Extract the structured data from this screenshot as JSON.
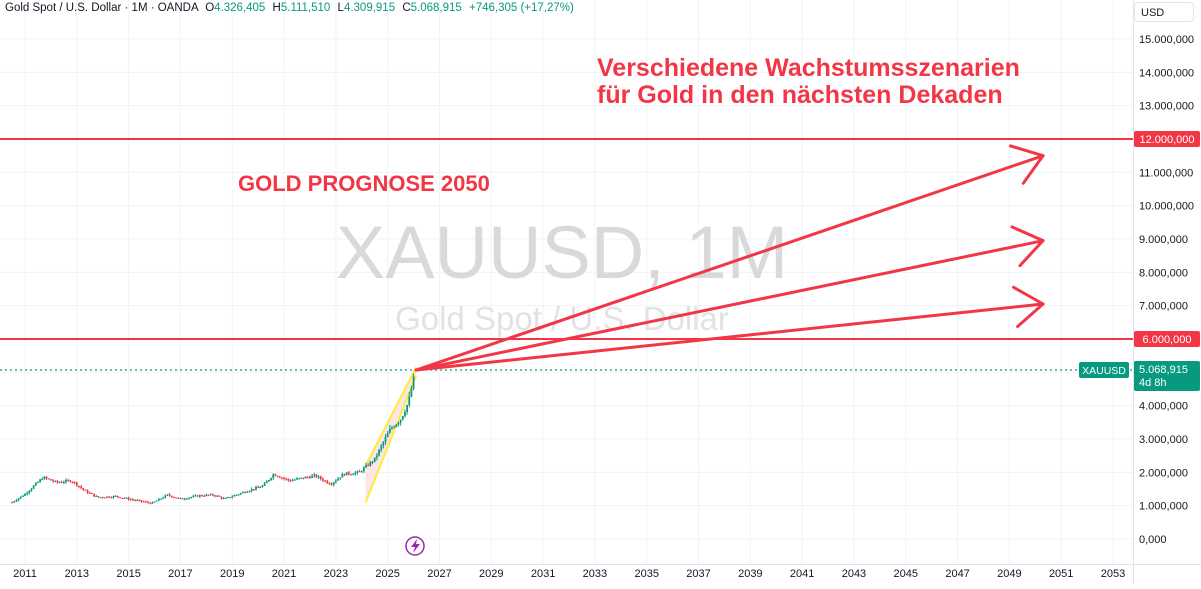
{
  "legend": {
    "symbol": "Gold Spot / U.S. Dollar · 1M · OANDA",
    "o_label": "O",
    "o_value": "4.326,405",
    "h_label": "H",
    "h_value": "5.111,510",
    "l_label": "L",
    "l_value": "4.309,915",
    "c_label": "C",
    "c_value": "5.068,915",
    "change": "+746,305 (+17,27%)"
  },
  "currency": "USD",
  "watermark": {
    "ticker": "XAUUSD, 1M",
    "name": "Gold Spot / U.S. Dollar"
  },
  "annotations": {
    "headline": "GOLD PROGNOSE 2050",
    "subtitle_line1": "Verschiedene Wachstumsszenarien",
    "subtitle_line2": "für Gold in den nächsten Dekaden"
  },
  "price_tag": {
    "symbol": "XAUUSD",
    "value": "5.068,915",
    "countdown": "4d 8h"
  },
  "colors": {
    "accent_red": "#f23645",
    "up": "#089981",
    "down": "#f23645",
    "channel": "#ffeb3b",
    "channel_fill": "#fcdede",
    "axis_text": "#131722",
    "grid": "#f0f3fa"
  },
  "icons": {
    "event": "lightning-icon"
  },
  "chart_data": {
    "type": "candlestick",
    "title": "",
    "x_ticks": [
      "2011",
      "2013",
      "2015",
      "2017",
      "2019",
      "2021",
      "2023",
      "2025",
      "2027",
      "2029",
      "2031",
      "2033",
      "2035",
      "2037",
      "2039",
      "2041",
      "2043",
      "2045",
      "2047",
      "2049",
      "2051",
      "2053"
    ],
    "y_ticks": [
      "0,000",
      "1.000,000",
      "2.000,000",
      "3.000,000",
      "4.000,000",
      "5.000,000",
      "6.000,000",
      "7.000,000",
      "8.000,000",
      "9.000,000",
      "10.000,000",
      "11.000,000",
      "12.000,000",
      "13.000,000",
      "14.000,000",
      "15.000,000"
    ],
    "ylim": [
      0,
      15600
    ],
    "xlim": [
      2010.5,
      2054.0
    ],
    "last_price": 5068.915,
    "close_path": [
      [
        2010.5,
        1100
      ],
      [
        2011.0,
        1350
      ],
      [
        2011.7,
        1850
      ],
      [
        2012.2,
        1700
      ],
      [
        2012.8,
        1750
      ],
      [
        2013.3,
        1450
      ],
      [
        2013.8,
        1250
      ],
      [
        2014.5,
        1280
      ],
      [
        2015.0,
        1200
      ],
      [
        2015.9,
        1070
      ],
      [
        2016.5,
        1320
      ],
      [
        2017.0,
        1200
      ],
      [
        2017.7,
        1300
      ],
      [
        2018.3,
        1320
      ],
      [
        2018.7,
        1200
      ],
      [
        2019.6,
        1450
      ],
      [
        2020.2,
        1600
      ],
      [
        2020.6,
        1950
      ],
      [
        2021.2,
        1750
      ],
      [
        2022.2,
        1900
      ],
      [
        2022.8,
        1650
      ],
      [
        2023.3,
        1950
      ],
      [
        2023.9,
        2000
      ],
      [
        2024.5,
        2400
      ],
      [
        2025.1,
        3300
      ],
      [
        2025.5,
        3600
      ],
      [
        2025.8,
        4100
      ],
      [
        2026.08,
        5068.915
      ]
    ],
    "horizontal_lines": [
      12000,
      6000
    ],
    "trend_channel": {
      "x": [
        2024.15,
        2026.1
      ],
      "lower": [
        1100,
        4900
      ],
      "upper": [
        2200,
        5150
      ]
    },
    "scenario_arrows": [
      {
        "from": [
          2026.1,
          5068.915
        ],
        "to": [
          2050.3,
          11500
        ]
      },
      {
        "from": [
          2026.1,
          5068.915
        ],
        "to": [
          2050.3,
          8950
        ]
      },
      {
        "from": [
          2026.1,
          5068.915
        ],
        "to": [
          2050.3,
          7050
        ]
      }
    ]
  }
}
